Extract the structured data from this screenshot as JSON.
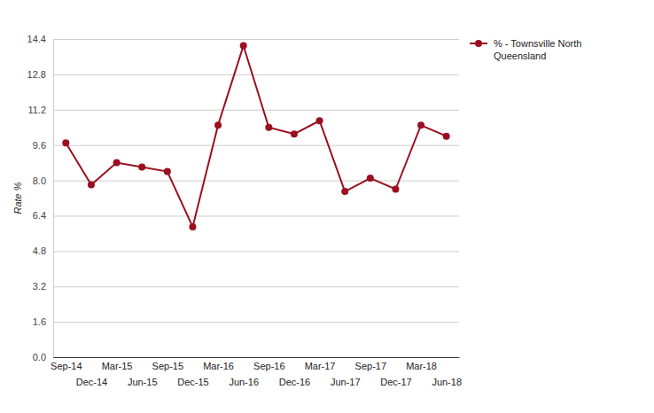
{
  "chart_data": {
    "type": "line",
    "y_label": "Rate %",
    "categories": [
      "Sep-14",
      "Dec-14",
      "Mar-15",
      "Jun-15",
      "Sep-15",
      "Dec-15",
      "Mar-16",
      "Jun-16",
      "Sep-16",
      "Dec-16",
      "Mar-17",
      "Jun-17",
      "Sep-17",
      "Dec-17",
      "Mar-18",
      "Jun-18"
    ],
    "series": [
      {
        "name": "% - Townsville North Queensland",
        "color": "#9b0f1f",
        "marker": "circle",
        "values": [
          9.7,
          7.8,
          8.8,
          8.6,
          8.4,
          5.9,
          10.5,
          14.1,
          10.4,
          10.1,
          10.7,
          7.5,
          8.1,
          7.6,
          10.5,
          10.0
        ]
      }
    ],
    "ylim": [
      0,
      14.4
    ],
    "yticks": [
      {
        "value": 0,
        "label": "0.0"
      },
      1.6,
      3.2,
      4.8,
      6.4,
      {
        "value": 8,
        "label": "8.0"
      },
      9.6,
      11.2,
      12.8,
      14.4
    ],
    "grid": true,
    "legend": "right"
  }
}
